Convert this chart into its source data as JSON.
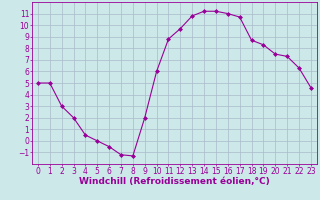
{
  "x": [
    0,
    1,
    2,
    3,
    4,
    5,
    6,
    7,
    8,
    9,
    10,
    11,
    12,
    13,
    14,
    15,
    16,
    17,
    18,
    19,
    20,
    21,
    22,
    23
  ],
  "y": [
    5,
    5,
    3,
    2,
    0.5,
    0,
    -0.5,
    -1.2,
    -1.3,
    2,
    6,
    8.8,
    9.7,
    10.8,
    11.2,
    11.2,
    11.0,
    10.7,
    8.7,
    8.3,
    7.5,
    7.3,
    6.3,
    4.6
  ],
  "xlabel": "Windchill (Refroidissement éolien,°C)",
  "line_color": "#990099",
  "marker_color": "#990099",
  "bg_color": "#cce8e8",
  "grid_color": "#aabbcc",
  "xlim": [
    -0.5,
    23.5
  ],
  "ylim": [
    -2,
    12
  ],
  "xticks": [
    0,
    1,
    2,
    3,
    4,
    5,
    6,
    7,
    8,
    9,
    10,
    11,
    12,
    13,
    14,
    15,
    16,
    17,
    18,
    19,
    20,
    21,
    22,
    23
  ],
  "yticks": [
    -1,
    0,
    1,
    2,
    3,
    4,
    5,
    6,
    7,
    8,
    9,
    10,
    11
  ],
  "xlabel_fontsize": 6.5,
  "tick_fontsize": 5.5
}
